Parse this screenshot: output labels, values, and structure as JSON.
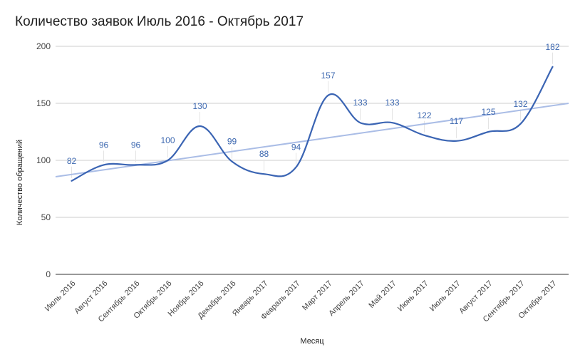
{
  "chart_data": {
    "type": "line",
    "title": "Количество заявок Июль 2016 - Октябрь 2017",
    "xlabel": "Месяц",
    "ylabel": "Количество обращений",
    "ylim": [
      0,
      200
    ],
    "yticks": [
      0,
      50,
      100,
      150,
      200
    ],
    "grid": true,
    "legend": "none",
    "categories": [
      "Июль 2016",
      "Август 2016",
      "Сентябрь 2016",
      "Октябрь 2016",
      "Ноябрь 2016",
      "Декабрь 2016",
      "Январь 2017",
      "Февраль 2017",
      "Март 2017",
      "Апрель 2017",
      "Май 2017",
      "Июнь 2017",
      "Июль 2017",
      "Август 2017",
      "Сентябрь 2017",
      "Октябрь 2017"
    ],
    "series": [
      {
        "name": "Количество обращений",
        "values": [
          82,
          96,
          96,
          100,
          130,
          99,
          88,
          94,
          157,
          133,
          133,
          122,
          117,
          125,
          132,
          182
        ],
        "color": "#3a64b3",
        "smooth": true,
        "data_labels": true
      }
    ],
    "trendline": {
      "type": "linear",
      "start": 85.6,
      "end": 150,
      "color": "#aabde6"
    }
  }
}
